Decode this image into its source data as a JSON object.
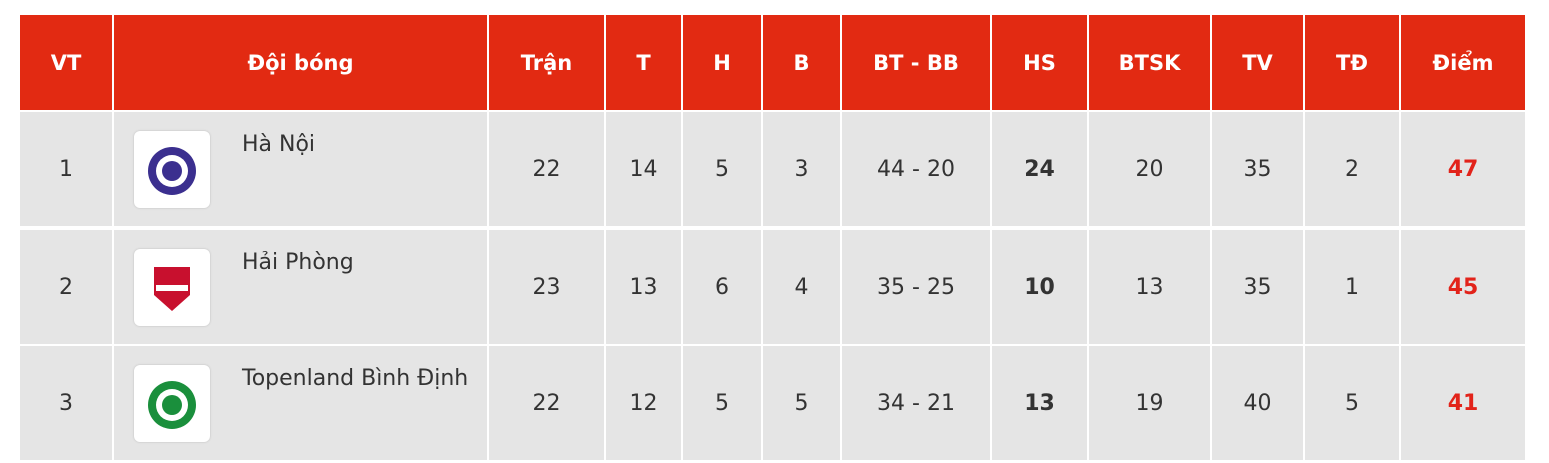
{
  "table": {
    "headers": [
      "VT",
      "Đội bóng",
      "Trận",
      "T",
      "H",
      "B",
      "BT - BB",
      "HS",
      "BTSK",
      "TV",
      "TĐ",
      "Điểm"
    ],
    "rows": [
      [
        "1",
        "Hà Nội",
        "22",
        "14",
        "5",
        "3",
        "44 - 20",
        "24",
        "20",
        "35",
        "2",
        "47"
      ],
      [
        "2",
        "Hải Phòng",
        "23",
        "13",
        "6",
        "4",
        "35 - 25",
        "10",
        "13",
        "35",
        "1",
        "45"
      ],
      [
        "3",
        "Topenland Bình Định",
        "22",
        "12",
        "5",
        "5",
        "34 - 21",
        "13",
        "19",
        "40",
        "5",
        "41"
      ]
    ]
  }
}
